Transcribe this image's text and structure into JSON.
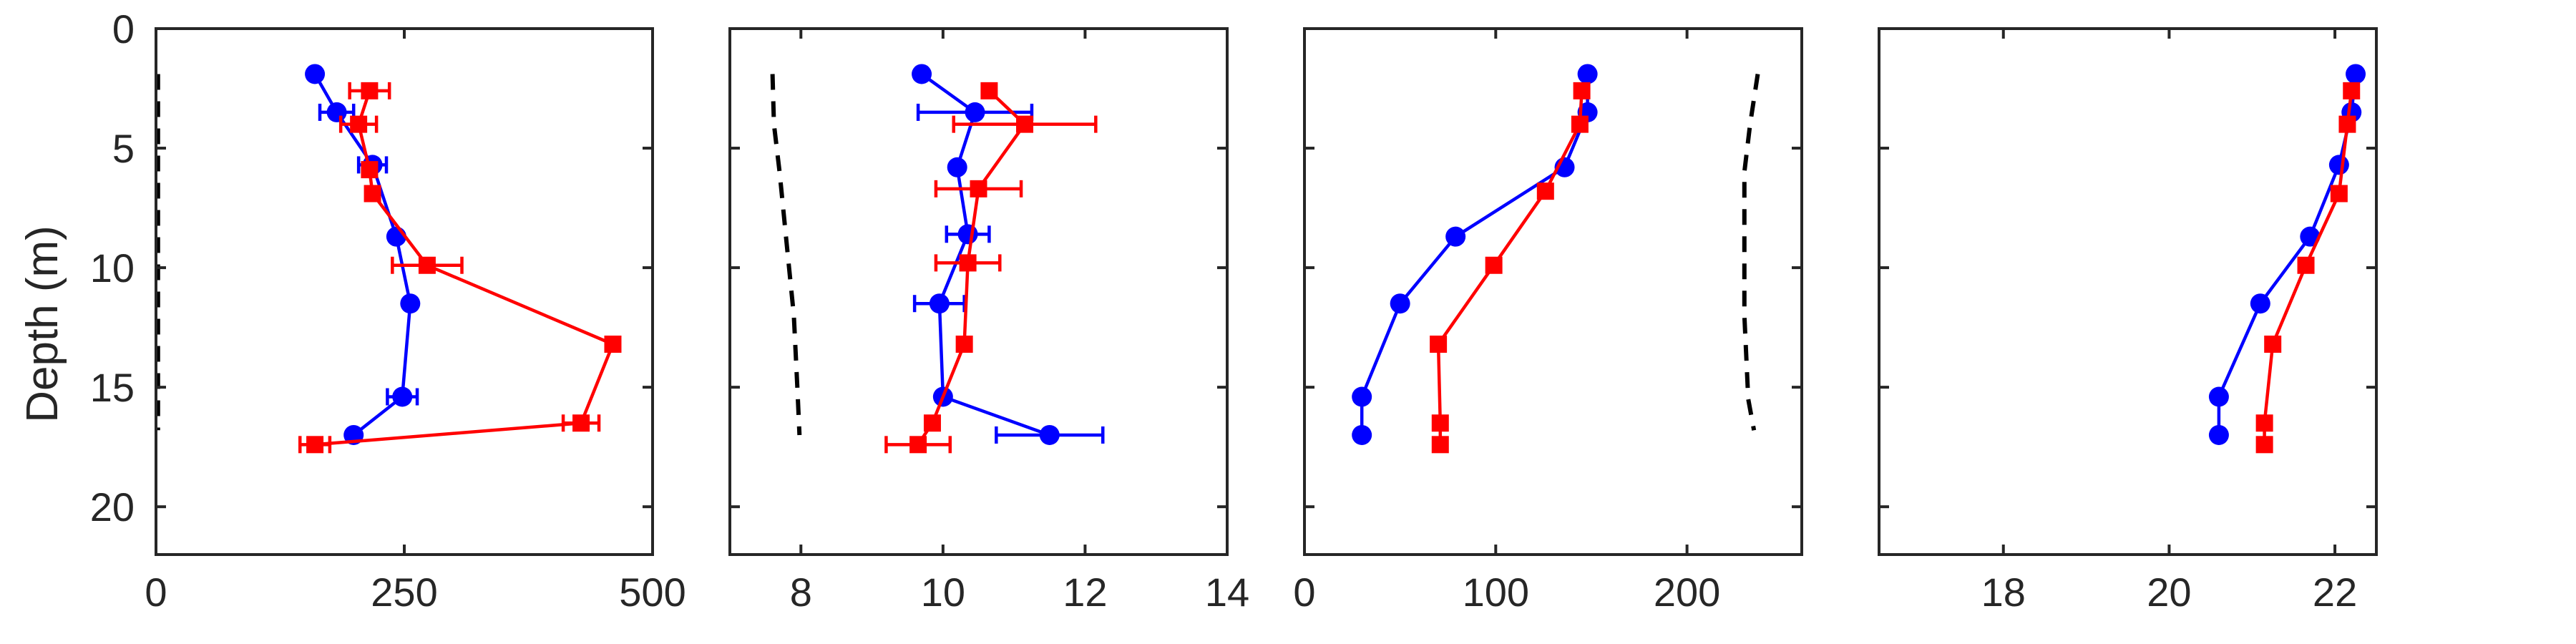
{
  "colors": {
    "series_blue": "#0000ff",
    "series_red": "#ff0000",
    "reference": "#000000",
    "axes": "#262626"
  },
  "chart_data": [
    {
      "type": "line",
      "ylabel": "Depth (m)",
      "ylim": [
        0,
        22
      ],
      "y_reversed": true,
      "xlim": [
        0,
        500
      ],
      "xticks": [
        0,
        250,
        500
      ],
      "yticks": [
        0,
        5,
        10,
        15,
        20
      ],
      "series": [
        {
          "color": "blue",
          "marker": "circle",
          "x": [
            160,
            182,
            218,
            242,
            256,
            248,
            199
          ],
          "y": [
            1.9,
            3.5,
            5.7,
            8.7,
            11.5,
            15.4,
            17.0
          ],
          "xerr": [
            null,
            17,
            14,
            null,
            null,
            15,
            null
          ]
        },
        {
          "color": "red",
          "marker": "square",
          "x": [
            215,
            204,
            215,
            218,
            273,
            460,
            428,
            160
          ],
          "y": [
            2.6,
            4.0,
            5.9,
            6.9,
            9.9,
            13.2,
            16.5,
            17.4
          ],
          "xerr": [
            20,
            18,
            null,
            null,
            35,
            null,
            18,
            15
          ]
        },
        {
          "color": "black",
          "style": "dashed",
          "x": [
            2,
            2,
            2,
            2,
            2,
            2,
            2
          ],
          "y": [
            1.9,
            5,
            8,
            11,
            14,
            15.8,
            16.8
          ]
        }
      ]
    },
    {
      "type": "line",
      "ylim": [
        0,
        22
      ],
      "y_reversed": true,
      "xlim": [
        7,
        14
      ],
      "xticks": [
        8,
        10,
        12,
        14
      ],
      "series": [
        {
          "color": "blue",
          "marker": "circle",
          "x": [
            9.7,
            10.45,
            10.2,
            10.35,
            9.95,
            10.0,
            11.5
          ],
          "y": [
            1.9,
            3.5,
            5.8,
            8.6,
            11.5,
            15.4,
            17.0
          ],
          "xerr": [
            null,
            0.8,
            null,
            0.3,
            0.35,
            null,
            0.75
          ]
        },
        {
          "color": "red",
          "marker": "square",
          "x": [
            10.65,
            11.15,
            10.5,
            10.35,
            10.3,
            9.85,
            9.65
          ],
          "y": [
            2.6,
            4.0,
            6.7,
            9.8,
            13.2,
            16.5,
            17.4
          ],
          "xerr": [
            null,
            1.0,
            0.6,
            0.45,
            null,
            null,
            0.45
          ]
        },
        {
          "color": "black",
          "style": "dashed",
          "x": [
            7.6,
            7.62,
            7.7,
            7.8,
            7.9,
            7.95,
            7.98
          ],
          "y": [
            1.9,
            4,
            6,
            9,
            12,
            15,
            17
          ]
        }
      ]
    },
    {
      "type": "line",
      "ylim": [
        0,
        22
      ],
      "y_reversed": true,
      "xlim": [
        0,
        260
      ],
      "xticks": [
        0,
        100,
        200
      ],
      "series": [
        {
          "color": "blue",
          "marker": "circle",
          "x": [
            148,
            148,
            136,
            79,
            50,
            30,
            30
          ],
          "y": [
            1.9,
            3.5,
            5.8,
            8.7,
            11.5,
            15.4,
            17.0
          ]
        },
        {
          "color": "red",
          "marker": "square",
          "x": [
            145,
            144,
            126,
            99,
            70,
            71,
            71
          ],
          "y": [
            2.6,
            4.0,
            6.8,
            9.9,
            13.2,
            16.5,
            17.4
          ]
        },
        {
          "color": "black",
          "style": "dashed",
          "x": [
            237,
            233,
            230,
            230,
            230,
            230,
            232,
            235
          ],
          "y": [
            1.9,
            4,
            6,
            8,
            10,
            12,
            15.5,
            16.8
          ]
        }
      ]
    },
    {
      "type": "line",
      "ylim": [
        0,
        22
      ],
      "y_reversed": true,
      "xlim": [
        16.5,
        22.5
      ],
      "xticks": [
        18,
        20,
        22
      ],
      "series": [
        {
          "color": "blue",
          "marker": "circle",
          "x": [
            22.25,
            22.2,
            22.05,
            21.7,
            21.1,
            20.6,
            20.6
          ],
          "y": [
            1.9,
            3.5,
            5.7,
            8.7,
            11.5,
            15.4,
            17.0
          ]
        },
        {
          "color": "red",
          "marker": "square",
          "x": [
            22.2,
            22.15,
            22.05,
            21.65,
            21.25,
            21.15,
            21.15
          ],
          "y": [
            2.6,
            4.0,
            6.9,
            9.9,
            13.2,
            16.5,
            17.4
          ]
        }
      ]
    }
  ]
}
